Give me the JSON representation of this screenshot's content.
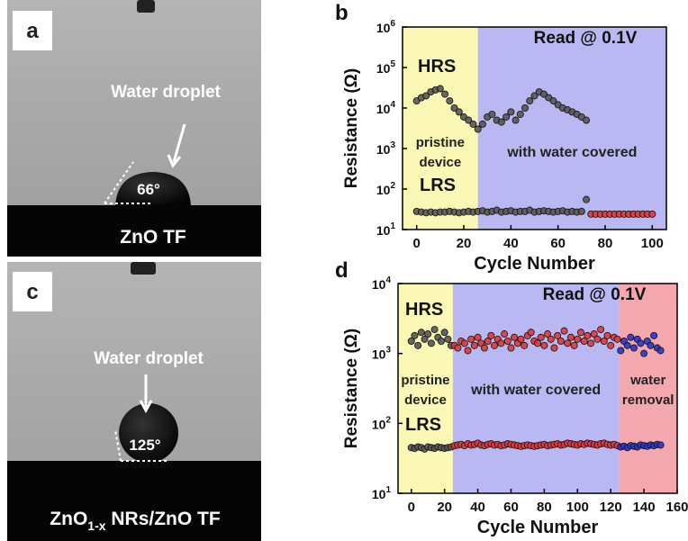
{
  "photos": [
    {
      "label": "a",
      "caption": "Water droplet",
      "angle": "66°",
      "sample": "ZnO TF"
    },
    {
      "label": "c",
      "caption": "Water droplet",
      "angle": "125°",
      "sample_parts": [
        "ZnO",
        "1-x",
        " NRs/ZnO TF"
      ]
    }
  ],
  "chart_data": [
    {
      "type": "scatter",
      "label": "b",
      "xlabel": "Cycle Number",
      "ylabel": "Resistance (Ω)",
      "log_y": true,
      "xlim": [
        -6,
        106
      ],
      "xticks": [
        0,
        20,
        40,
        60,
        80,
        100
      ],
      "ylim": [
        10,
        1000000
      ],
      "yticks": [
        {
          "value": 10,
          "label": "10",
          "sup": "1"
        },
        {
          "value": 100,
          "label": "10",
          "sup": "2"
        },
        {
          "value": 1000,
          "label": "10",
          "sup": "3"
        },
        {
          "value": 10000,
          "label": "10",
          "sup": "4"
        },
        {
          "value": 100000,
          "label": "10",
          "sup": "5"
        },
        {
          "value": 1000000,
          "label": "10",
          "sup": "6"
        }
      ],
      "read_label": "Read @ 0.1V",
      "hrs_label": "HRS",
      "lrs_label": "LRS",
      "regions": [
        {
          "from": -6,
          "to": 26,
          "color": "#fbf7b4",
          "text": [
            "pristine",
            "device"
          ]
        },
        {
          "from": 26,
          "to": 106,
          "color": "#b9b8f2",
          "text": [
            "with water covered"
          ]
        }
      ],
      "series": [
        {
          "color": "#555555",
          "x": [
            0,
            2,
            4,
            6,
            8,
            10,
            12,
            14,
            16,
            18,
            20,
            22,
            24,
            26,
            28,
            30,
            32,
            34,
            36,
            38,
            40,
            42,
            44,
            46,
            48,
            50,
            52,
            54,
            56,
            58,
            60,
            62,
            64,
            66,
            68,
            70,
            72
          ],
          "values": [
            15000,
            18000,
            20000,
            25000,
            28000,
            30000,
            22000,
            15000,
            10000,
            8000,
            6000,
            5000,
            4000,
            3000,
            4000,
            6000,
            7000,
            5000,
            4500,
            6000,
            8000,
            5000,
            7000,
            10000,
            15000,
            20000,
            25000,
            22000,
            18000,
            15000,
            12000,
            10000,
            9000,
            8000,
            7000,
            6000,
            5000
          ]
        },
        {
          "color": "#555555",
          "x": [
            0,
            2,
            4,
            6,
            8,
            10,
            12,
            14,
            16,
            18,
            20,
            22,
            24,
            26,
            28,
            30,
            32,
            34,
            36,
            38,
            40,
            42,
            44,
            46,
            48,
            50,
            52,
            54,
            56,
            58,
            60,
            62,
            64,
            66,
            68,
            70,
            72
          ],
          "values": [
            28,
            27,
            26,
            27,
            26,
            27,
            27,
            28,
            27,
            26,
            27,
            28,
            27,
            28,
            29,
            27,
            28,
            30,
            27,
            28,
            29,
            27,
            28,
            28,
            30,
            27,
            28,
            29,
            28,
            27,
            28,
            29,
            27,
            28,
            27,
            28,
            55
          ]
        },
        {
          "color": "#e0393b",
          "x": [
            74,
            76,
            78,
            80,
            82,
            84,
            86,
            88,
            90,
            92,
            94,
            96,
            98,
            100
          ],
          "values": [
            24,
            24,
            24,
            24,
            24,
            24,
            24,
            24,
            24,
            24,
            24,
            24,
            24,
            24
          ]
        }
      ]
    },
    {
      "type": "scatter",
      "label": "d",
      "xlabel": "Cycle Number",
      "ylabel": "Resistance (Ω)",
      "log_y": true,
      "xlim": [
        -8,
        160
      ],
      "xticks": [
        0,
        20,
        40,
        60,
        80,
        100,
        120,
        140,
        160
      ],
      "ylim": [
        10,
        10000
      ],
      "yticks": [
        {
          "value": 10,
          "label": "10",
          "sup": "1"
        },
        {
          "value": 100,
          "label": "10",
          "sup": "2"
        },
        {
          "value": 1000,
          "label": "10",
          "sup": "3"
        },
        {
          "value": 10000,
          "label": "10",
          "sup": "4"
        }
      ],
      "read_label": "Read @ 0.1V",
      "hrs_label": "HRS",
      "lrs_label": "LRS",
      "regions": [
        {
          "from": -8,
          "to": 25,
          "color": "#fbf7b4",
          "text": [
            "pristine",
            "device"
          ]
        },
        {
          "from": 25,
          "to": 125,
          "color": "#b9b8f2",
          "text": [
            "with water covered"
          ]
        },
        {
          "from": 125,
          "to": 160,
          "color": "#f3a7ae",
          "text": [
            "water",
            "removal"
          ]
        }
      ],
      "series": [
        {
          "color": "#555555",
          "x": [
            0,
            2,
            4,
            6,
            8,
            10,
            12,
            14,
            16,
            18,
            20,
            22,
            24
          ],
          "values": [
            1500,
            1800,
            1300,
            2000,
            1600,
            1900,
            1400,
            2200,
            1700,
            1500,
            2000,
            1600,
            1300
          ]
        },
        {
          "color": "#555555",
          "x": [
            0,
            2,
            4,
            6,
            8,
            10,
            12,
            14,
            16,
            18,
            20,
            22,
            24
          ],
          "values": [
            45,
            44,
            46,
            45,
            43,
            46,
            45,
            44,
            46,
            45,
            44,
            45,
            46
          ]
        },
        {
          "color": "#e0393b",
          "x": [
            26,
            28,
            30,
            32,
            34,
            36,
            38,
            40,
            42,
            44,
            46,
            48,
            50,
            52,
            54,
            56,
            58,
            60,
            62,
            64,
            66,
            68,
            70,
            72,
            74,
            76,
            78,
            80,
            82,
            84,
            86,
            88,
            90,
            92,
            94,
            96,
            98,
            100,
            102,
            104,
            106,
            108,
            110,
            112,
            114,
            116,
            118,
            120,
            122,
            124
          ],
          "values": [
            1300,
            1200,
            1500,
            1400,
            1100,
            1600,
            1300,
            1700,
            1400,
            1200,
            1500,
            1800,
            1300,
            1600,
            1400,
            1900,
            1500,
            1200,
            1700,
            1400,
            1600,
            1300,
            1800,
            2000,
            1500,
            1400,
            1700,
            1300,
            1900,
            1600,
            1200,
            1800,
            1500,
            2100,
            1400,
            1700,
            1300,
            1600,
            2000,
            1500,
            1800,
            1400,
            1900,
            1600,
            2200,
            1500,
            1800,
            1300,
            1700,
            1600
          ]
        },
        {
          "color": "#e0393b",
          "x": [
            26,
            28,
            30,
            32,
            34,
            36,
            38,
            40,
            42,
            44,
            46,
            48,
            50,
            52,
            54,
            56,
            58,
            60,
            62,
            64,
            66,
            68,
            70,
            72,
            74,
            76,
            78,
            80,
            82,
            84,
            86,
            88,
            90,
            92,
            94,
            96,
            98,
            100,
            102,
            104,
            106,
            108,
            110,
            112,
            114,
            116,
            118,
            120,
            122,
            124
          ],
          "values": [
            48,
            49,
            50,
            48,
            51,
            49,
            50,
            52,
            49,
            48,
            50,
            51,
            49,
            50,
            48,
            49,
            51,
            50,
            49,
            48,
            47,
            48,
            49,
            48,
            47,
            48,
            49,
            50,
            48,
            49,
            50,
            51,
            49,
            50,
            52,
            51,
            50,
            49,
            51,
            50,
            52,
            51,
            50,
            49,
            51,
            52,
            50,
            49,
            50,
            48
          ]
        },
        {
          "color": "#2a35c8",
          "x": [
            126,
            128,
            130,
            132,
            134,
            136,
            138,
            140,
            142,
            144,
            146,
            148,
            150
          ],
          "values": [
            1100,
            1500,
            1300,
            1700,
            1200,
            1600,
            1400,
            1000,
            1500,
            1300,
            1800,
            1200,
            1100
          ]
        },
        {
          "color": "#2a35c8",
          "x": [
            126,
            128,
            130,
            132,
            134,
            136,
            138,
            140,
            142,
            144,
            146,
            148,
            150
          ],
          "values": [
            46,
            47,
            45,
            48,
            47,
            46,
            49,
            48,
            47,
            49,
            48,
            50,
            49
          ]
        }
      ]
    }
  ]
}
